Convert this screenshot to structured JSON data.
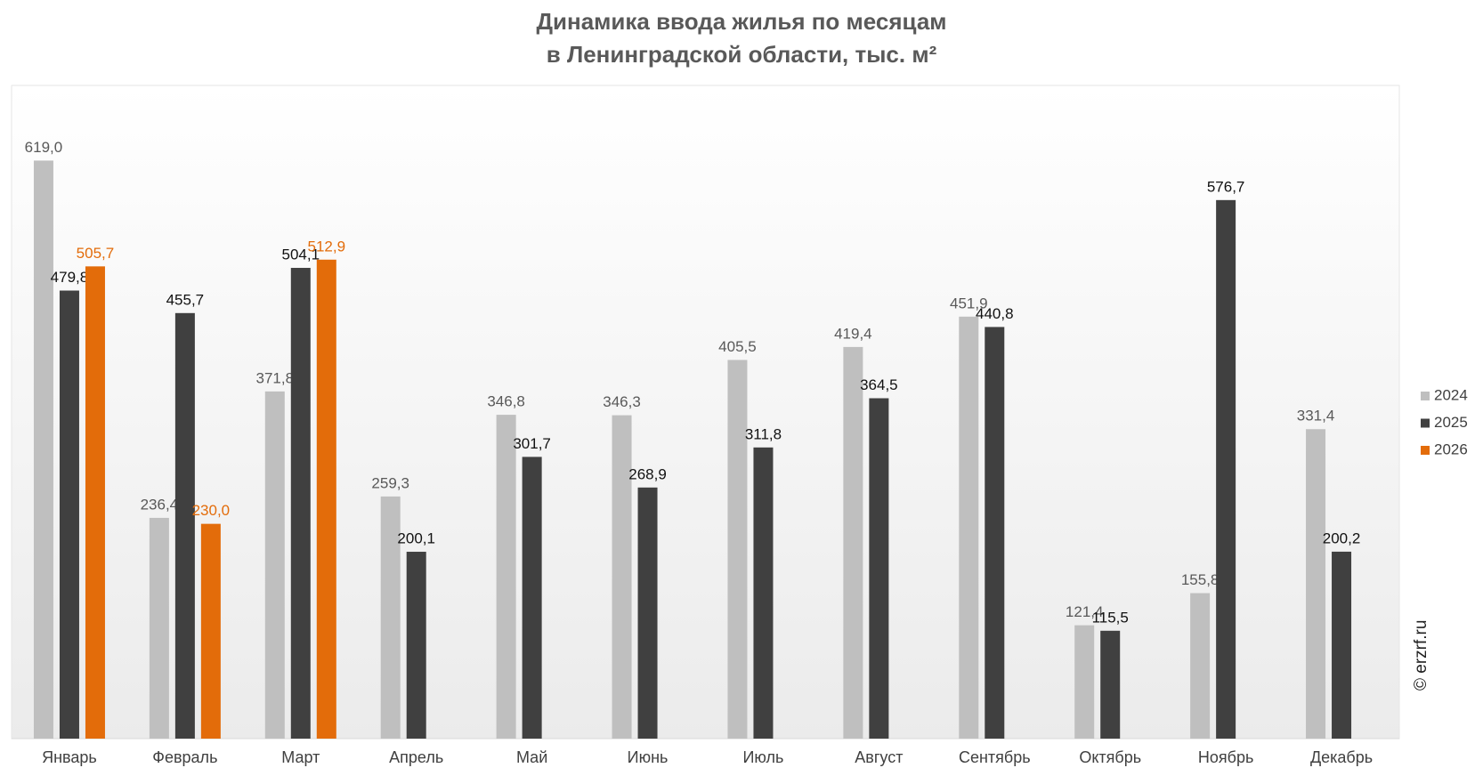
{
  "chart_data": {
    "type": "bar",
    "title": [
      "Динамика ввода жилья по месяцам",
      "в Ленинградской области, тыс. м²"
    ],
    "categories": [
      "Январь",
      "Февраль",
      "Март",
      "Апрель",
      "Май",
      "Июнь",
      "Июль",
      "Август",
      "Сентябрь",
      "Октябрь",
      "Ноябрь",
      "Декабрь"
    ],
    "series": [
      {
        "name": "2024",
        "color": "#bfbfbf",
        "label_color": "#595959",
        "values": [
          619.0,
          236.4,
          371.8,
          259.3,
          346.8,
          346.3,
          405.5,
          419.4,
          451.9,
          121.4,
          155.8,
          331.4
        ],
        "value_labels": [
          "619,0",
          "236,4",
          "371,8",
          "259,3",
          "346,8",
          "346,3",
          "405,5",
          "419,4",
          "451,9",
          "121,4",
          "155,8",
          "331,4"
        ]
      },
      {
        "name": "2025",
        "color": "#404040",
        "label_color": "#111111",
        "values": [
          479.8,
          455.7,
          504.1,
          200.1,
          301.7,
          268.9,
          311.8,
          364.5,
          440.8,
          115.5,
          576.7,
          200.2
        ],
        "value_labels": [
          "479,8",
          "455,7",
          "504,1",
          "200,1",
          "301,7",
          "268,9",
          "311,8",
          "364,5",
          "440,8",
          "115,5",
          "576,7",
          "200,2"
        ]
      },
      {
        "name": "2026",
        "color": "#e36c0a",
        "label_color": "#e36c0a",
        "values": [
          505.7,
          230.0,
          512.9,
          null,
          null,
          null,
          null,
          null,
          null,
          null,
          null,
          null
        ],
        "value_labels": [
          "505,7",
          "230,0",
          "512,9",
          null,
          null,
          null,
          null,
          null,
          null,
          null,
          null,
          null
        ]
      }
    ],
    "legend": "right",
    "watermark": "© erzrf.ru"
  }
}
